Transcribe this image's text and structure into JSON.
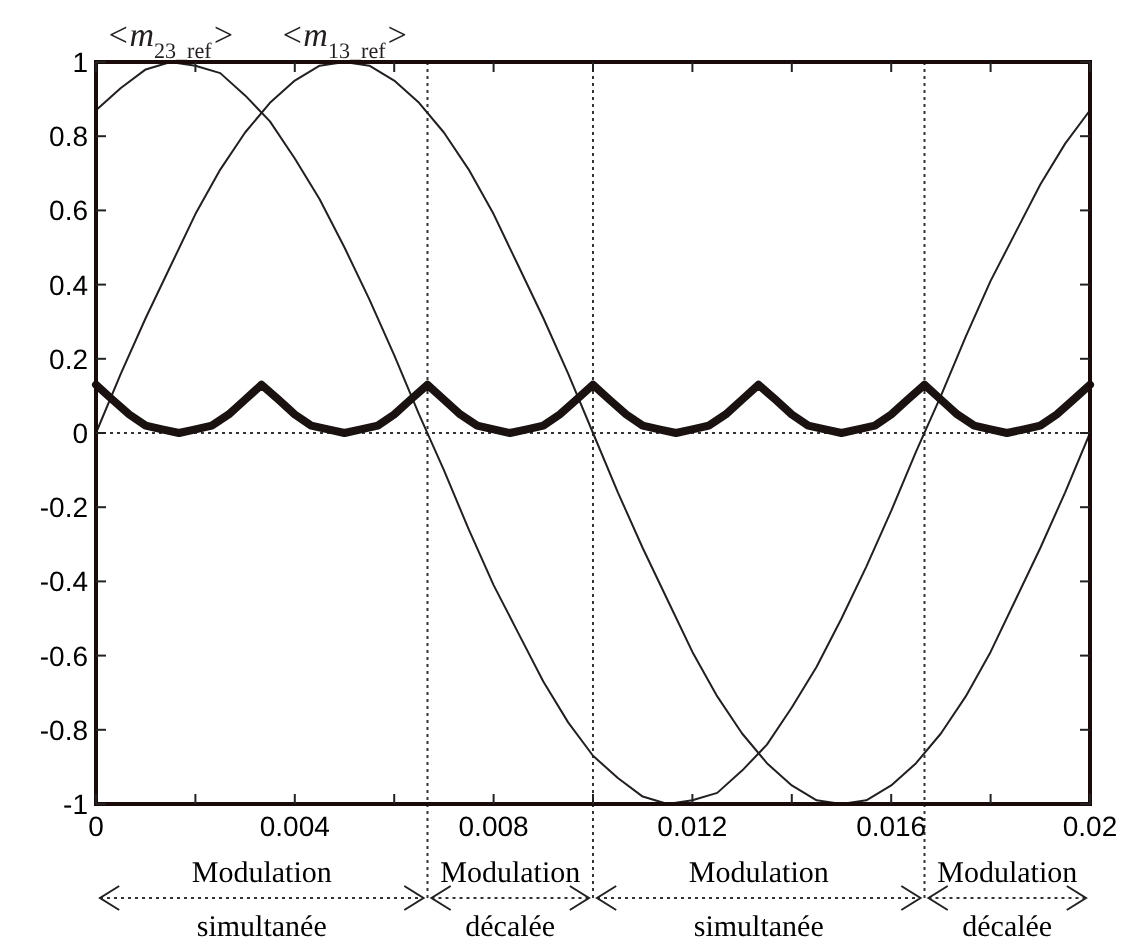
{
  "chart_data": {
    "type": "line",
    "x": [
      0,
      0.0005,
      0.001,
      0.0015,
      0.002,
      0.0025,
      0.003,
      0.0035,
      0.004,
      0.0045,
      0.005,
      0.0055,
      0.006,
      0.0065,
      0.007,
      0.0075,
      0.008,
      0.0085,
      0.009,
      0.0095,
      0.01,
      0.0105,
      0.011,
      0.0115,
      0.012,
      0.0125,
      0.013,
      0.0135,
      0.014,
      0.0145,
      0.015,
      0.0155,
      0.016,
      0.0165,
      0.017,
      0.0175,
      0.018,
      0.0185,
      0.019,
      0.0195,
      0.02
    ],
    "series": [
      {
        "name": "<m$_{23_ref}$>",
        "color": "#231f20",
        "values": [
          0.87,
          0.93,
          0.98,
          1,
          0.99,
          0.97,
          0.91,
          0.84,
          0.74,
          0.63,
          0.5,
          0.36,
          0.21,
          0.05,
          -0.1,
          -0.26,
          -0.41,
          -0.54,
          -0.67,
          -0.78,
          -0.87,
          -0.93,
          -0.98,
          -1,
          -0.99,
          -0.97,
          -0.91,
          -0.84,
          -0.74,
          -0.63,
          -0.5,
          -0.36,
          -0.21,
          -0.05,
          0.1,
          0.26,
          0.41,
          0.54,
          0.67,
          0.78,
          0.87
        ]
      },
      {
        "name": "<m$_{13_ref}$>",
        "color": "#231f20",
        "values": [
          0,
          0.16,
          0.31,
          0.45,
          0.59,
          0.71,
          0.81,
          0.89,
          0.95,
          0.99,
          1,
          0.99,
          0.95,
          0.89,
          0.81,
          0.71,
          0.59,
          0.45,
          0.31,
          0.16,
          0,
          -0.16,
          -0.31,
          -0.45,
          -0.59,
          -0.71,
          -0.81,
          -0.89,
          -0.95,
          -0.99,
          -1,
          -0.99,
          -0.95,
          -0.89,
          -0.81,
          -0.71,
          -0.59,
          -0.45,
          -0.31,
          -0.16,
          0
        ]
      },
      {
        "color": "#1a1111",
        "x": [
          0,
          0.00033,
          0.00067,
          0.001,
          0.00133,
          0.00167,
          0.002,
          0.00233,
          0.00267,
          0.003,
          0.00333,
          0.00367,
          0.004,
          0.00433,
          0.00467,
          0.005,
          0.00533,
          0.00567,
          0.006,
          0.00633,
          0.00667,
          0.007,
          0.00733,
          0.00767,
          0.008,
          0.00833,
          0.00867,
          0.009,
          0.00933,
          0.00967,
          0.01,
          0.01033,
          0.01067,
          0.011,
          0.01133,
          0.01167,
          0.012,
          0.01233,
          0.01267,
          0.013,
          0.01333,
          0.01367,
          0.014,
          0.01433,
          0.01467,
          0.015,
          0.01533,
          0.01567,
          0.016,
          0.01633,
          0.01667,
          0.017,
          0.01733,
          0.01767,
          0.018,
          0.01833,
          0.01867,
          0.019,
          0.01933,
          0.01967,
          0.02
        ],
        "values": [
          0.13,
          0.09,
          0.05,
          0.02,
          0.01,
          0,
          0.01,
          0.02,
          0.05,
          0.09,
          0.13,
          0.09,
          0.05,
          0.02,
          0.01,
          0,
          0.01,
          0.02,
          0.05,
          0.09,
          0.13,
          0.09,
          0.05,
          0.02,
          0.01,
          0,
          0.01,
          0.02,
          0.05,
          0.09,
          0.13,
          0.09,
          0.05,
          0.02,
          0.01,
          0,
          0.01,
          0.02,
          0.05,
          0.09,
          0.13,
          0.09,
          0.05,
          0.02,
          0.01,
          0,
          0.01,
          0.02,
          0.05,
          0.09,
          0.13,
          0.09,
          0.05,
          0.02,
          0.01,
          0,
          0.01,
          0.02,
          0.05,
          0.09,
          0.13
        ]
      }
    ],
    "xlim": [
      0,
      0.02
    ],
    "xticks": [
      0,
      {
        "value": 0.002,
        "label": null
      },
      0.004,
      {
        "value": 0.006,
        "label": null
      },
      0.008,
      {
        "value": 0.01,
        "label": null
      },
      0.012,
      {
        "value": 0.014,
        "label": null
      },
      0.016,
      {
        "value": 0.018,
        "label": null
      },
      0.02
    ],
    "ylim": [
      -1,
      1
    ],
    "yticks": [
      -1,
      -0.8,
      -0.6,
      -0.4,
      -0.2,
      0,
      0.2,
      0.4,
      0.6,
      0.8,
      1
    ],
    "ref_lines": [
      {
        "axis": "y",
        "value": 0,
        "line_style": "dotted"
      },
      {
        "axis": "x",
        "value": 0.00667,
        "line_style": "dotted"
      },
      {
        "axis": "x",
        "value": 0.01,
        "line_style": "dotted"
      },
      {
        "axis": "x",
        "value": 0.01667,
        "line_style": "dotted"
      }
    ],
    "annotations": [
      "Modulation simultanée",
      "Modulation décalée",
      "Modulation simultanée",
      "Modulation décalée"
    ],
    "grid": false,
    "marker": "none",
    "line_style": "solid"
  }
}
